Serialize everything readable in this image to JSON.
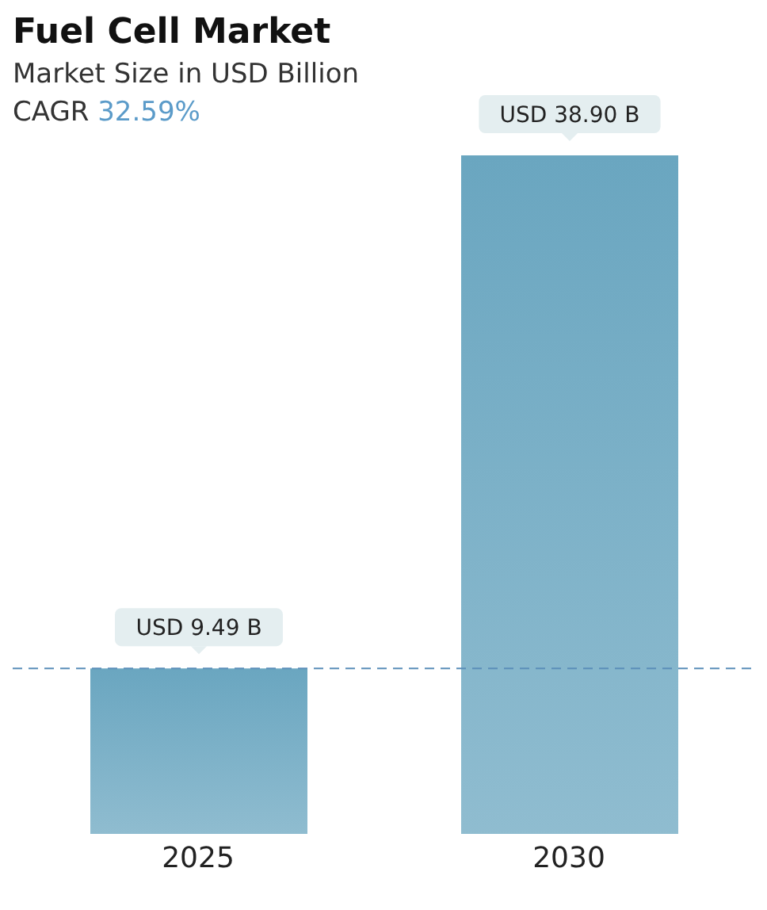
{
  "chart_data": {
    "type": "bar",
    "title": "Fuel Cell Market",
    "subtitle": "Market Size in USD Billion",
    "annotations": [
      "CAGR 32.59%"
    ],
    "categories": [
      "2025",
      "2030"
    ],
    "series": [
      {
        "color": "#6aa6c0",
        "values": [
          9.49,
          38.9
        ],
        "value_labels": [
          "USD 9.49 B",
          "USD 38.90 B"
        ]
      }
    ],
    "ref_lines": [
      {
        "axis": "y",
        "value": 9.49,
        "color": "#5b8fb9",
        "line_style": "dashed"
      }
    ]
  }
}
